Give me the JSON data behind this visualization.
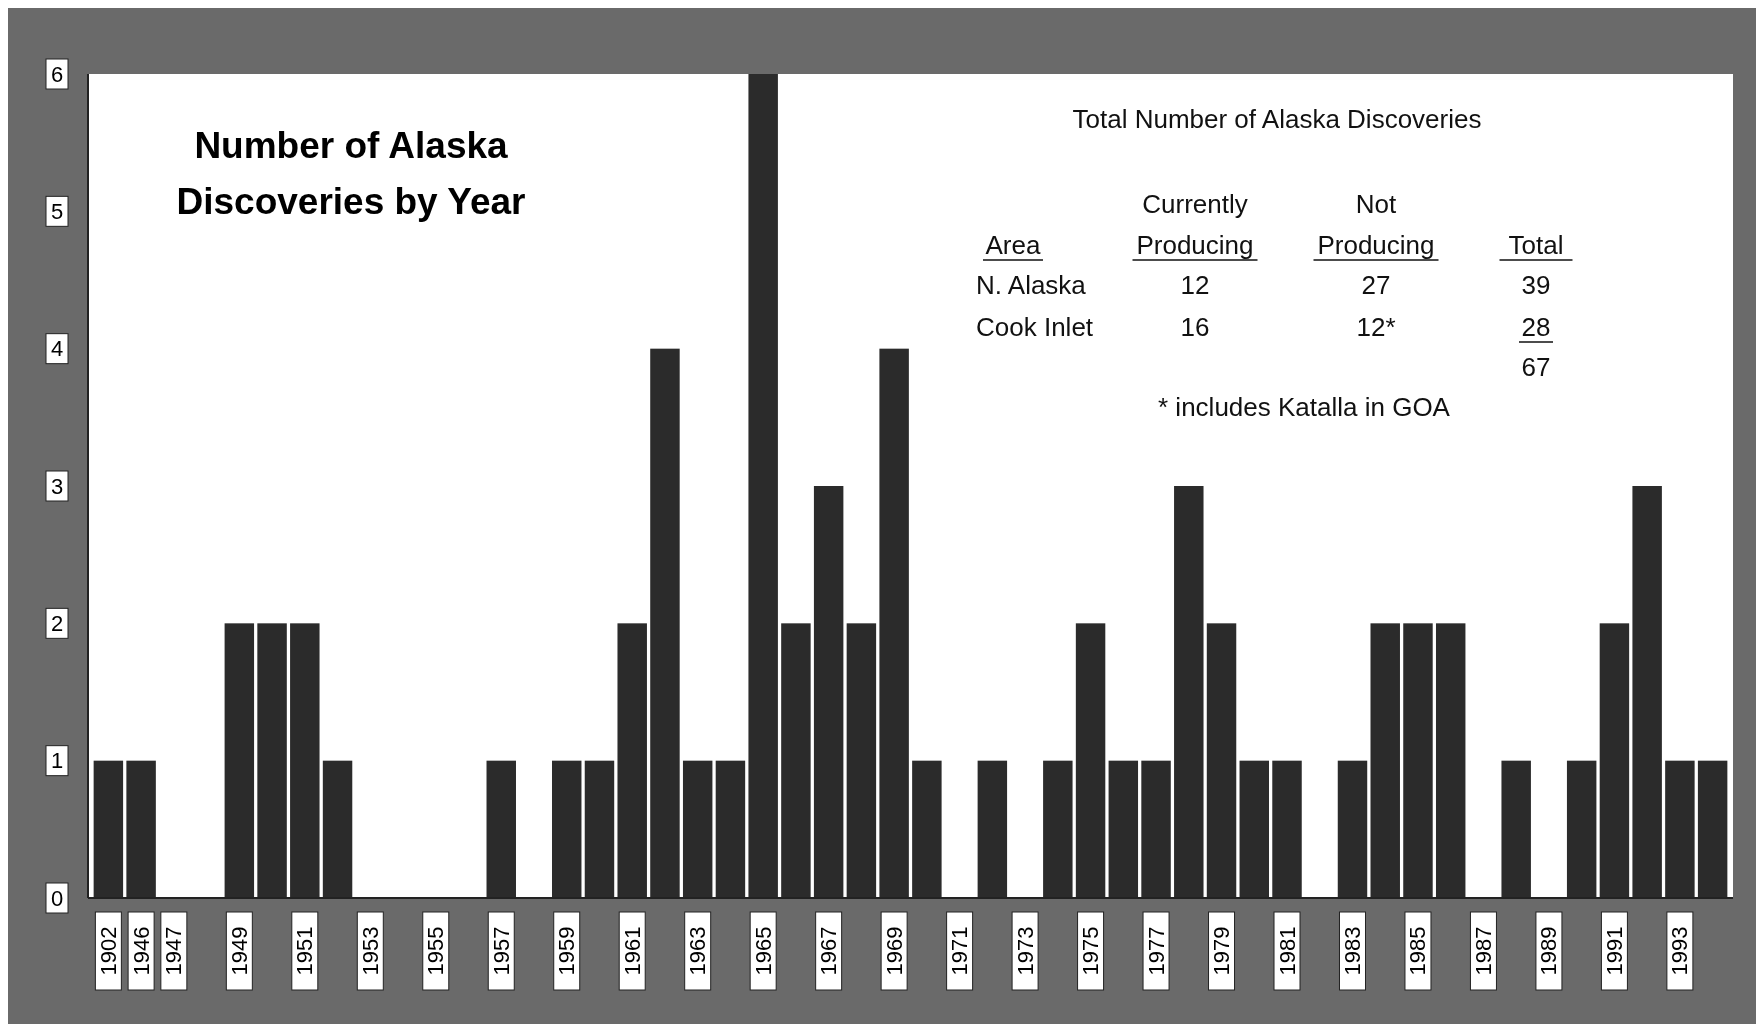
{
  "chart_data": {
    "type": "bar",
    "title": "Number of Alaska Discoveries by Year",
    "categories": [
      "1902",
      "1946",
      "1947",
      null,
      "1949",
      null,
      "1951",
      null,
      "1953",
      null,
      "1955",
      null,
      "1957",
      null,
      "1959",
      null,
      "1961",
      null,
      "1963",
      null,
      "1965",
      null,
      "1967",
      null,
      "1969",
      null,
      "1971",
      null,
      "1973",
      null,
      "1975",
      null,
      "1977",
      null,
      "1979",
      null,
      "1981",
      null,
      "1983",
      null,
      "1985",
      null,
      "1987",
      null,
      "1989",
      null,
      "1991",
      null,
      "1993",
      null
    ],
    "values": [
      1,
      1,
      0,
      0,
      2,
      2,
      2,
      1,
      0,
      0,
      0,
      0,
      1,
      0,
      1,
      1,
      2,
      4,
      1,
      1,
      6,
      2,
      3,
      2,
      4,
      1,
      0,
      1,
      0,
      1,
      2,
      1,
      1,
      3,
      2,
      1,
      1,
      0,
      1,
      2,
      2,
      2,
      0,
      1,
      0,
      1,
      2,
      3,
      1,
      1
    ],
    "color": "#2b2b2b",
    "ylim": [
      0,
      6
    ],
    "yticks": [
      0,
      1,
      2,
      3,
      4,
      5,
      6
    ],
    "grid": false,
    "annotations": [
      "Total Number of Alaska Discoveries",
      "Currently",
      "Not",
      "Area",
      "Producing",
      "Producing",
      "Total",
      "N. Alaska",
      "12",
      "27",
      "39",
      "Cook Inlet",
      "16",
      "12*",
      "28",
      "67",
      "* includes Katalla in GOA"
    ]
  }
}
